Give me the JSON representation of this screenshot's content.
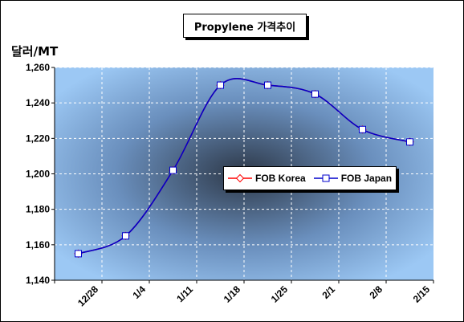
{
  "chart_data": {
    "type": "line",
    "title": "Propylene 가격추이",
    "ylabel": "달러/MT",
    "xlabel": "",
    "categories": [
      "12/28",
      "1/4",
      "1/11",
      "1/18",
      "1/25",
      "2/1",
      "2/8",
      "2/15"
    ],
    "ylim": [
      1140,
      1260
    ],
    "yticks": [
      1140,
      1160,
      1180,
      1200,
      1220,
      1240,
      1260
    ],
    "ytick_labels": [
      "1,140",
      "1,160",
      "1,180",
      "1,200",
      "1,220",
      "1,240",
      "1,260"
    ],
    "grid": true,
    "legend": "center-right",
    "series": [
      {
        "name": "FOB Korea",
        "color": "#ff0000",
        "marker": "diamond",
        "values": [
          1155,
          1165,
          1202,
          1250,
          1250,
          1245,
          1225,
          1218
        ]
      },
      {
        "name": "FOB Japan",
        "color": "#0000cc",
        "marker": "square",
        "values": [
          1155,
          1165,
          1202,
          1250,
          1250,
          1245,
          1225,
          1218
        ]
      }
    ]
  }
}
